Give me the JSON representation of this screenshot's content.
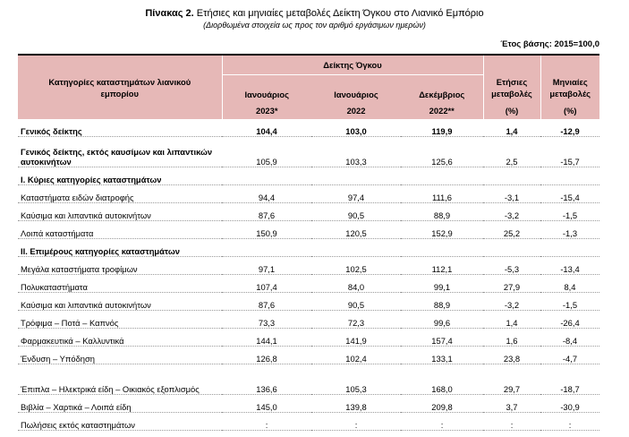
{
  "header": {
    "title_bold": "Πίνακας 2.",
    "title_rest": " Ετήσιες και μηνιαίες μεταβολές Δείκτη Όγκου στο Λιανικό Εμπόριο",
    "subtitle": "(Διορθωμένα στοιχεία ως προς τον αριθμό εργάσιμων ημερών)",
    "base_year": "Έτος βάσης: 2015=100,0"
  },
  "columns": {
    "category": "Κατηγορίες καταστημάτων λιανικού εμπορίου",
    "volume_index": "Δείκτης Όγκου",
    "c1_month": "Ιανουάριος",
    "c1_year": "2023*",
    "c2_month": "Ιανουάριος",
    "c2_year": "2022",
    "c3_month": "Δεκέμβριος",
    "c3_year": "2022**",
    "c4_label": "Ετήσιες μεταβολές",
    "c4_unit": "(%)",
    "c5_label": "Μηνιαίες μεταβολές",
    "c5_unit": "(%)"
  },
  "rows": [
    {
      "label": "Γενικός δείκτης",
      "v1": "104,4",
      "v2": "103,0",
      "v3": "119,9",
      "v4": "1,4",
      "v5": "-12,9"
    },
    {
      "label": "Γενικός δείκτης, εκτός καυσίμων και λιπαντικών αυτοκινήτων",
      "v1": "105,9",
      "v2": "103,3",
      "v3": "125,6",
      "v4": "2,5",
      "v5": "-15,7"
    },
    {
      "label": "Ι. Κύριες κατηγορίες καταστημάτων",
      "v1": "",
      "v2": "",
      "v3": "",
      "v4": "",
      "v5": ""
    },
    {
      "label": "Καταστήματα ειδών διατροφής",
      "v1": "94,4",
      "v2": "97,4",
      "v3": "111,6",
      "v4": "-3,1",
      "v5": "-15,4"
    },
    {
      "label": "Καύσιμα και λιπαντικά αυτοκινήτων",
      "v1": "87,6",
      "v2": "90,5",
      "v3": "88,9",
      "v4": "-3,2",
      "v5": "-1,5"
    },
    {
      "label": "Λοιπά καταστήματα",
      "v1": "150,9",
      "v2": "120,5",
      "v3": "152,9",
      "v4": "25,2",
      "v5": "-1,3"
    },
    {
      "label": "ΙΙ. Επιμέρους κατηγορίες καταστημάτων",
      "v1": "",
      "v2": "",
      "v3": "",
      "v4": "",
      "v5": ""
    },
    {
      "label": "Μεγάλα καταστήματα τροφίμων",
      "v1": "97,1",
      "v2": "102,5",
      "v3": "112,1",
      "v4": "-5,3",
      "v5": "-13,4"
    },
    {
      "label": "Πολυκαταστήματα",
      "v1": "107,4",
      "v2": "84,0",
      "v3": "99,1",
      "v4": "27,9",
      "v5": "8,4"
    },
    {
      "label": "Καύσιμα και λιπαντικά αυτοκινήτων",
      "v1": "87,6",
      "v2": "90,5",
      "v3": "88,9",
      "v4": "-3,2",
      "v5": "-1,5"
    },
    {
      "label": "Τρόφιμα – Ποτά – Καπνός",
      "v1": "73,3",
      "v2": "72,3",
      "v3": "99,6",
      "v4": "1,4",
      "v5": "-26,4"
    },
    {
      "label": "Φαρμακευτικά – Καλλυντικά",
      "v1": "144,1",
      "v2": "141,9",
      "v3": "157,4",
      "v4": "1,6",
      "v5": "-8,4"
    },
    {
      "label": "Ένδυση – Υπόδηση",
      "v1": "126,8",
      "v2": "102,4",
      "v3": "133,1",
      "v4": "23,8",
      "v5": "-4,7"
    },
    {
      "label": "Έπιπλα – Ηλεκτρικά είδη – Οικιακός εξοπλισμός",
      "v1": "136,6",
      "v2": "105,3",
      "v3": "168,0",
      "v4": "29,7",
      "v5": "-18,7"
    },
    {
      "label": "Βιβλία – Χαρτικά – Λοιπά είδη",
      "v1": "145,0",
      "v2": "139,8",
      "v3": "209,8",
      "v4": "3,7",
      "v5": "-30,9"
    },
    {
      "label": "Πωλήσεις εκτός καταστημάτων",
      "v1": ":",
      "v2": ":",
      "v3": ":",
      "v4": ":",
      "v5": ":"
    }
  ]
}
